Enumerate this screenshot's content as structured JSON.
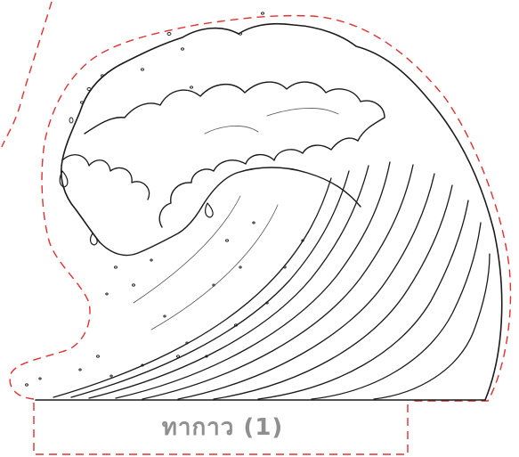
{
  "label": {
    "text": "ทากาว (1)"
  },
  "colors": {
    "cut_line": "#e0302f",
    "ink": "#1a1a1a",
    "label": "#8f8f8f"
  },
  "illustration": {
    "subject": "wave-icon"
  }
}
